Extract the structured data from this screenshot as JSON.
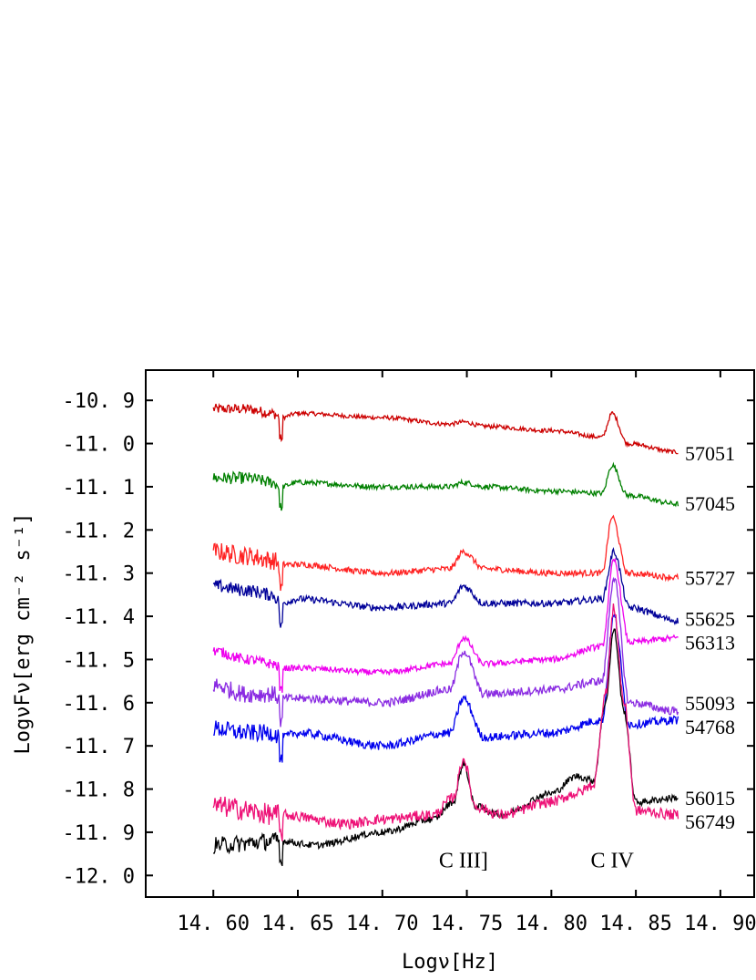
{
  "chart_data": {
    "type": "line",
    "title": "",
    "xlabel": "Logν[Hz]",
    "ylabel": "LogνFν[erg cm⁻² s⁻¹]",
    "xlim": [
      14.56,
      14.92
    ],
    "ylim": [
      -12.05,
      -10.83
    ],
    "x_ticks": [
      14.6,
      14.65,
      14.7,
      14.75,
      14.8,
      14.85,
      14.9
    ],
    "x_tick_labels": [
      "14. 60",
      "14. 65",
      "14. 70",
      "14. 75",
      "14. 80",
      "14. 85",
      "14. 90"
    ],
    "y_ticks": [
      -10.9,
      -11.0,
      -11.1,
      -11.2,
      -11.3,
      -11.4,
      -11.5,
      -11.6,
      -11.7,
      -11.8,
      -11.9,
      -12.0
    ],
    "y_tick_labels": [
      "-10. 9",
      "-11. 0",
      "-11. 1",
      "-11. 2",
      "-11. 3",
      "-11. 4",
      "-11. 5",
      "-11. 6",
      "-11. 7",
      "-11. 8",
      "-11. 9",
      "-12. 0"
    ],
    "grid": false,
    "annotations": [
      {
        "text": "C III]",
        "x": 14.748,
        "y": -11.965
      },
      {
        "text": "C IV",
        "x": 14.836,
        "y": -11.965
      }
    ],
    "series": [
      {
        "name": "57051",
        "color": "#cc0000",
        "label_y": -11.022,
        "noise": 0.005,
        "blue_noise": 0.012,
        "x": [
          14.6,
          14.62,
          14.635,
          14.64,
          14.65,
          14.7,
          14.74,
          14.748,
          14.76,
          14.8,
          14.83,
          14.836,
          14.845,
          14.875
        ],
        "y": [
          -10.92,
          -10.92,
          -10.93,
          -10.94,
          -10.93,
          -10.94,
          -10.955,
          -10.95,
          -10.96,
          -10.97,
          -10.985,
          -10.93,
          -11.0,
          -11.02
        ]
      },
      {
        "name": "57045",
        "color": "#008000",
        "label_y": -11.138,
        "noise": 0.006,
        "blue_noise": 0.014,
        "x": [
          14.6,
          14.62,
          14.635,
          14.64,
          14.65,
          14.7,
          14.74,
          14.748,
          14.76,
          14.8,
          14.83,
          14.836,
          14.845,
          14.875
        ],
        "y": [
          -11.08,
          -11.08,
          -11.09,
          -11.1,
          -11.09,
          -11.1,
          -11.1,
          -11.09,
          -11.1,
          -11.11,
          -11.115,
          -11.05,
          -11.12,
          -11.14
        ]
      },
      {
        "name": "55727",
        "color": "#ff2222",
        "label_y": -11.31,
        "noise": 0.007,
        "blue_noise": 0.022,
        "x": [
          14.6,
          14.62,
          14.635,
          14.64,
          14.65,
          14.7,
          14.74,
          14.748,
          14.76,
          14.8,
          14.83,
          14.836,
          14.845,
          14.875
        ],
        "y": [
          -11.25,
          -11.26,
          -11.27,
          -11.28,
          -11.28,
          -11.3,
          -11.29,
          -11.25,
          -11.29,
          -11.3,
          -11.3,
          -11.17,
          -11.3,
          -11.31
        ]
      },
      {
        "name": "55625",
        "color": "#000099",
        "label_y": -11.405,
        "noise": 0.008,
        "blue_noise": 0.015,
        "x": [
          14.6,
          14.62,
          14.635,
          14.64,
          14.65,
          14.7,
          14.74,
          14.748,
          14.76,
          14.8,
          14.83,
          14.837,
          14.846,
          14.875
        ],
        "y": [
          -11.33,
          -11.34,
          -11.35,
          -11.37,
          -11.36,
          -11.38,
          -11.37,
          -11.33,
          -11.37,
          -11.37,
          -11.36,
          -11.25,
          -11.38,
          -11.41
        ]
      },
      {
        "name": "56313",
        "color": "#ee00ee",
        "label_y": -11.46,
        "noise": 0.007,
        "blue_noise": 0.012,
        "x": [
          14.6,
          14.62,
          14.635,
          14.64,
          14.65,
          14.7,
          14.74,
          14.748,
          14.76,
          14.8,
          14.83,
          14.837,
          14.846,
          14.875
        ],
        "y": [
          -11.48,
          -11.5,
          -11.51,
          -11.52,
          -11.52,
          -11.53,
          -11.51,
          -11.45,
          -11.51,
          -11.5,
          -11.47,
          -11.27,
          -11.46,
          -11.45
        ]
      },
      {
        "name": "55093",
        "color": "#8a2be2",
        "label_y": -11.6,
        "noise": 0.01,
        "blue_noise": 0.02,
        "x": [
          14.6,
          14.62,
          14.635,
          14.64,
          14.65,
          14.7,
          14.74,
          14.748,
          14.76,
          14.8,
          14.83,
          14.837,
          14.846,
          14.875
        ],
        "y": [
          -11.56,
          -11.58,
          -11.58,
          -11.59,
          -11.59,
          -11.6,
          -11.57,
          -11.48,
          -11.58,
          -11.57,
          -11.55,
          -11.31,
          -11.6,
          -11.62
        ]
      },
      {
        "name": "54768",
        "color": "#0000ee",
        "label_y": -11.655,
        "noise": 0.01,
        "blue_noise": 0.02,
        "x": [
          14.6,
          14.62,
          14.635,
          14.64,
          14.65,
          14.7,
          14.74,
          14.748,
          14.76,
          14.8,
          14.83,
          14.837,
          14.846,
          14.875
        ],
        "y": [
          -11.66,
          -11.67,
          -11.67,
          -11.68,
          -11.67,
          -11.7,
          -11.67,
          -11.59,
          -11.68,
          -11.67,
          -11.64,
          -11.4,
          -11.65,
          -11.64
        ]
      },
      {
        "name": "56015",
        "color": "#000000",
        "label_y": -11.82,
        "noise": 0.008,
        "blue_noise": 0.02,
        "x": [
          14.6,
          14.64,
          14.66,
          14.7,
          14.73,
          14.742,
          14.748,
          14.755,
          14.77,
          14.8,
          14.815,
          14.825,
          14.832,
          14.837,
          14.843,
          14.85,
          14.875
        ],
        "y": [
          -11.93,
          -11.92,
          -11.93,
          -11.9,
          -11.87,
          -11.83,
          -11.74,
          -11.84,
          -11.86,
          -11.81,
          -11.77,
          -11.78,
          -11.6,
          -11.43,
          -11.62,
          -11.83,
          -11.82
        ]
      },
      {
        "name": "56749",
        "color": "#ee1177",
        "label_y": -11.875,
        "noise": 0.012,
        "blue_noise": 0.025,
        "x": [
          14.6,
          14.64,
          14.68,
          14.7,
          14.73,
          14.742,
          14.748,
          14.755,
          14.77,
          14.8,
          14.815,
          14.825,
          14.832,
          14.837,
          14.843,
          14.85,
          14.875
        ],
        "y": [
          -11.84,
          -11.86,
          -11.88,
          -11.87,
          -11.86,
          -11.82,
          -11.73,
          -11.84,
          -11.86,
          -11.83,
          -11.81,
          -11.79,
          -11.58,
          -11.38,
          -11.6,
          -11.85,
          -11.86
        ]
      }
    ]
  }
}
